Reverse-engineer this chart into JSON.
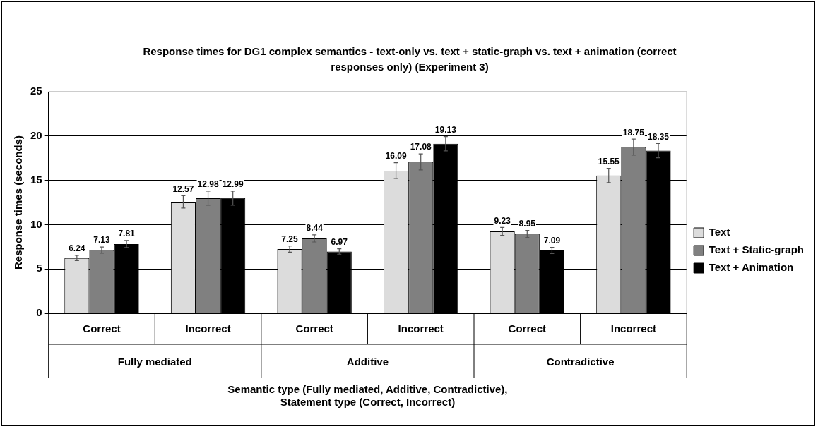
{
  "chart_data": {
    "type": "bar",
    "title": "Response times for DG1 complex semantics - text-only vs. text + static-graph vs. text + animation (correct responses only) (Experiment 3)",
    "xlabel": "Semantic type (Fully mediated, Additive, Contradictive),\nStatement type (Correct, Incorrect)",
    "ylabel": "Response times (seconds)",
    "categories": [
      "Correct",
      "Incorrect",
      "Correct",
      "Incorrect",
      "Correct",
      "Incorrect"
    ],
    "series": [
      {
        "name": "Text",
        "color": "#dcdcdc",
        "values": [
          6.24,
          12.57,
          7.25,
          16.09,
          9.23,
          15.55
        ],
        "errors": [
          0.3,
          0.7,
          0.35,
          0.9,
          0.45,
          0.8
        ]
      },
      {
        "name": "Text + Static-graph",
        "color": "#808080",
        "values": [
          7.13,
          12.98,
          8.44,
          17.08,
          8.95,
          18.75
        ],
        "errors": [
          0.35,
          0.8,
          0.4,
          0.9,
          0.4,
          0.9
        ]
      },
      {
        "name": "Text + Animation",
        "color": "#000000",
        "values": [
          7.81,
          12.99,
          6.97,
          19.13,
          7.09,
          18.35
        ],
        "errors": [
          0.4,
          0.8,
          0.3,
          0.8,
          0.35,
          0.8
        ]
      }
    ],
    "annotations": [
      "Fully mediated",
      "Additive",
      "Contradictive"
    ],
    "ylim": [
      0,
      25
    ],
    "yticks": [
      0,
      5,
      10,
      15,
      20,
      25
    ],
    "grid": "y",
    "legend": "right",
    "data_labels": true
  }
}
